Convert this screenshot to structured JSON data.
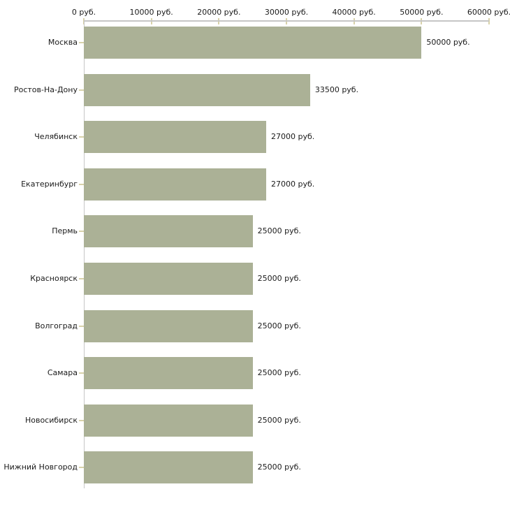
{
  "chart_data": {
    "type": "bar",
    "orientation": "horizontal",
    "title": "",
    "unit": "руб.",
    "categories": [
      "Москва",
      "Ростов-На-Дону",
      "Челябинск",
      "Екатеринбург",
      "Пермь",
      "Красноярск",
      "Волгоград",
      "Самара",
      "Новосибирск",
      "Нижний Новгород"
    ],
    "values": [
      50000,
      33500,
      27000,
      27000,
      25000,
      25000,
      25000,
      25000,
      25000,
      25000
    ],
    "value_labels": [
      "50000 руб.",
      "33500 руб.",
      "27000 руб.",
      "27000 руб.",
      "25000 руб.",
      "25000 руб.",
      "25000 руб.",
      "25000 руб.",
      "25000 руб.",
      "25000 руб."
    ],
    "x_axis": {
      "position": "top",
      "min": 0,
      "max": 60000,
      "ticks": [
        0,
        10000,
        20000,
        30000,
        40000,
        50000,
        60000
      ],
      "tick_labels": [
        "0 руб.",
        "10000 руб.",
        "20000 руб.",
        "30000 руб.",
        "40000 руб.",
        "50000 руб.",
        "60000 руб."
      ]
    },
    "grid": false,
    "legend": false,
    "colors": {
      "bar": "#abb196",
      "axis_line": "#c6c6c6",
      "tick_mark": "#d8d2aa",
      "text": "#1a1a1a",
      "background": "#ffffff"
    }
  }
}
